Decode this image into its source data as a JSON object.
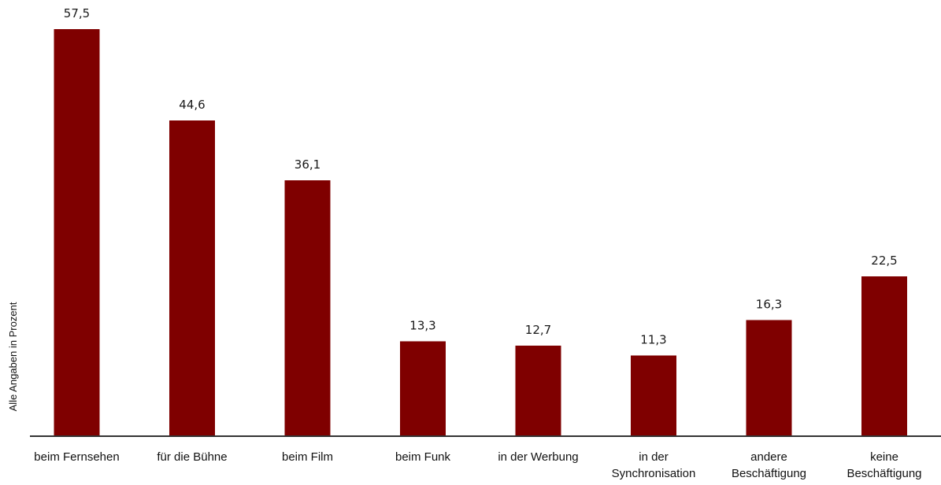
{
  "chart_data": {
    "type": "bar",
    "title": "",
    "xlabel": "",
    "ylabel": "Alle Angaben in Prozent",
    "categories": [
      [
        "beim Fernsehen"
      ],
      [
        "für die Bühne"
      ],
      [
        "beim Film"
      ],
      [
        "beim Funk"
      ],
      [
        "in der Werbung"
      ],
      [
        "in der",
        "Synchronisation"
      ],
      [
        "andere",
        "Beschäftigung"
      ],
      [
        "keine",
        "Beschäftigung"
      ]
    ],
    "values": [
      57.5,
      44.6,
      36.1,
      13.3,
      12.7,
      11.3,
      16.3,
      22.5
    ],
    "value_labels": [
      "57,5",
      "44,6",
      "36,1",
      "13,3",
      "12,7",
      "11,3",
      "16,3",
      "22,5"
    ],
    "ylim": [
      0,
      57.5
    ],
    "grid": false,
    "legend": "none",
    "colors": {
      "bar": "#7f0000",
      "axis": "#333333"
    }
  }
}
